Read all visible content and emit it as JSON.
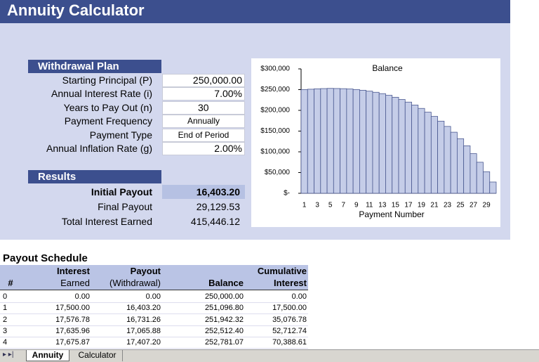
{
  "title": "Annuity Calculator",
  "withdrawal_plan": {
    "heading": "Withdrawal Plan",
    "rows": [
      [
        "Starting Principal (P)",
        "250,000.00"
      ],
      [
        "Annual Interest Rate (i)",
        "7.00%"
      ],
      [
        "Years to Pay Out (n)",
        "30"
      ],
      [
        "Payment Frequency",
        "Annually"
      ],
      [
        "Payment Type",
        "End of Period"
      ],
      [
        "Annual Inflation Rate (g)",
        "2.00%"
      ]
    ]
  },
  "results": {
    "heading": "Results",
    "rows": [
      [
        "Initial Payout",
        "16,403.20"
      ],
      [
        "Final Payout",
        "29,129.53"
      ],
      [
        "Total Interest Earned",
        "415,446.12"
      ]
    ]
  },
  "chart": {
    "type": "bar",
    "title": "Balance",
    "x_label": "Payment Number",
    "categories": [
      1,
      null,
      3,
      null,
      5,
      null,
      7,
      null,
      9,
      null,
      11,
      null,
      13,
      null,
      15,
      null,
      17,
      null,
      19,
      null,
      21,
      null,
      23,
      null,
      25,
      null,
      27,
      null,
      29,
      null
    ],
    "values": [
      250000,
      251000,
      252000,
      252500,
      253000,
      252700,
      252300,
      251500,
      250300,
      248500,
      246300,
      243600,
      240300,
      236300,
      231600,
      226200,
      219900,
      212800,
      204700,
      195600,
      185400,
      174000,
      161300,
      147300,
      131700,
      114500,
      95600,
      74900,
      52100,
      27200
    ],
    "color": "#c5cde8",
    "ylim": [
      0,
      300000
    ],
    "yticks": [
      {
        "value": 0,
        "label": "$-"
      },
      {
        "value": 50000,
        "label": "$50,000"
      },
      {
        "value": 100000,
        "label": "$100,000"
      },
      {
        "value": 150000,
        "label": "$150,000"
      },
      {
        "value": 200000,
        "label": "$200,000"
      },
      {
        "value": 250000,
        "label": "$250,000"
      },
      {
        "value": 300000,
        "label": "$300,000"
      }
    ]
  },
  "schedule": {
    "title": "Payout Schedule",
    "columns": [
      [
        "#"
      ],
      [
        "Interest",
        "Earned"
      ],
      [
        "Payout",
        "(Withdrawal)"
      ],
      [
        "Balance"
      ],
      [
        "Cumulative",
        "Interest"
      ]
    ],
    "rows": [
      [
        "0",
        "0.00",
        "0.00",
        "250,000.00",
        "0.00"
      ],
      [
        "1",
        "17,500.00",
        "16,403.20",
        "251,096.80",
        "17,500.00"
      ],
      [
        "2",
        "17,576.78",
        "16,731.26",
        "251,942.32",
        "35,076.78"
      ],
      [
        "3",
        "17,635.96",
        "17,065.88",
        "252,512.40",
        "52,712.74"
      ],
      [
        "4",
        "17,675.87",
        "17,407.20",
        "252,781.07",
        "70,388.61"
      ]
    ]
  },
  "tabs": [
    "Annuity",
    "Calculator"
  ]
}
